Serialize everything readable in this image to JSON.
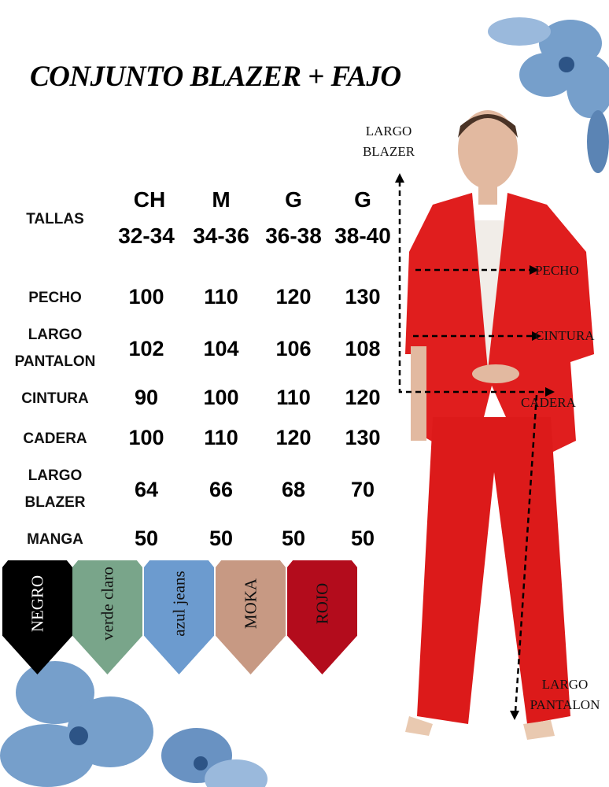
{
  "title": "CONJUNTO BLAZER + FAJO",
  "table": {
    "header_label": "TALLAS",
    "sizes": [
      {
        "name": "CH",
        "range": "32-34"
      },
      {
        "name": "M",
        "range": "34-36"
      },
      {
        "name": "G",
        "range": "36-38"
      },
      {
        "name": "G",
        "range": "38-40"
      }
    ],
    "rows": [
      {
        "label": "PECHO",
        "values": [
          "100",
          "110",
          "120",
          "130"
        ]
      },
      {
        "label": "LARGO PANTALON",
        "values": [
          "102",
          "104",
          "106",
          "108"
        ]
      },
      {
        "label": "CINTURA",
        "values": [
          "90",
          "100",
          "110",
          "120"
        ]
      },
      {
        "label": "CADERA",
        "values": [
          "100",
          "110",
          "120",
          "130"
        ]
      },
      {
        "label": "LARGO BLAZER",
        "values": [
          "64",
          "66",
          "68",
          "70"
        ]
      },
      {
        "label": "MANGA",
        "values": [
          "50",
          "50",
          "50",
          "50"
        ]
      }
    ]
  },
  "colors": [
    {
      "name": "NEGRO",
      "hex": "#000000",
      "text": "#ffffff"
    },
    {
      "name": "verde claro",
      "hex": "#79a58a",
      "text": "#111111"
    },
    {
      "name": "azul jeans",
      "hex": "#6c9bcf",
      "text": "#111111"
    },
    {
      "name": "MOKA",
      "hex": "#c79983",
      "text": "#111111"
    },
    {
      "name": "ROJO",
      "hex": "#b30c1c",
      "text": "#111111"
    }
  ],
  "annotations": {
    "largo_blazer": "LARGO BLAZER",
    "pecho": "PECHO",
    "cintura": "CINTURA",
    "cadera": "CADERA",
    "largo_pantalon": "LARGO PANTALON"
  },
  "garment_color": "#e01e1e"
}
